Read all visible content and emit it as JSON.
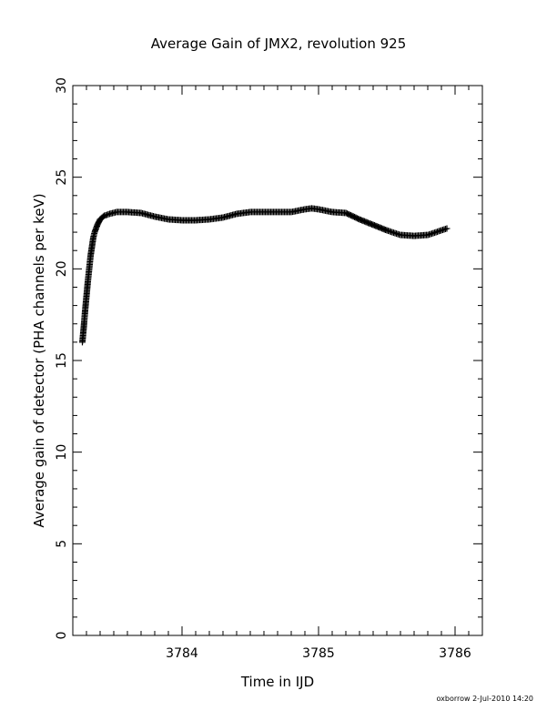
{
  "chart_data": {
    "type": "scatter",
    "title": "Average Gain of JMX2, revolution 925",
    "xlabel": "Time in IJD",
    "ylabel": "Average gain of detector (PHA channels per keV)",
    "xlim": [
      3783.2,
      3786.2
    ],
    "ylim": [
      0,
      30
    ],
    "x_ticks": [
      3784,
      3785,
      3786
    ],
    "y_ticks": [
      0,
      5,
      10,
      15,
      20,
      25,
      30
    ],
    "marker": "+",
    "grid": false,
    "series": [
      {
        "points": [
          [
            3783.27,
            16.0
          ],
          [
            3783.28,
            16.8
          ],
          [
            3783.29,
            17.7
          ],
          [
            3783.3,
            18.5
          ],
          [
            3783.31,
            19.3
          ],
          [
            3783.32,
            20.0
          ],
          [
            3783.33,
            20.7
          ],
          [
            3783.34,
            21.2
          ],
          [
            3783.35,
            21.7
          ],
          [
            3783.36,
            22.0
          ],
          [
            3783.38,
            22.4
          ],
          [
            3783.4,
            22.7
          ],
          [
            3783.43,
            22.9
          ],
          [
            3783.47,
            23.0
          ],
          [
            3783.52,
            23.1
          ],
          [
            3783.6,
            23.1
          ],
          [
            3783.7,
            23.05
          ],
          [
            3783.8,
            22.85
          ],
          [
            3783.9,
            22.7
          ],
          [
            3784.0,
            22.65
          ],
          [
            3784.1,
            22.65
          ],
          [
            3784.2,
            22.7
          ],
          [
            3784.3,
            22.8
          ],
          [
            3784.4,
            23.0
          ],
          [
            3784.5,
            23.1
          ],
          [
            3784.6,
            23.1
          ],
          [
            3784.7,
            23.1
          ],
          [
            3784.8,
            23.1
          ],
          [
            3784.9,
            23.25
          ],
          [
            3784.95,
            23.3
          ],
          [
            3785.0,
            23.25
          ],
          [
            3785.1,
            23.1
          ],
          [
            3785.2,
            23.05
          ],
          [
            3785.3,
            22.7
          ],
          [
            3785.4,
            22.4
          ],
          [
            3785.5,
            22.1
          ],
          [
            3785.6,
            21.85
          ],
          [
            3785.7,
            21.8
          ],
          [
            3785.8,
            21.85
          ],
          [
            3785.9,
            22.1
          ],
          [
            3785.94,
            22.2
          ]
        ]
      }
    ]
  },
  "footer": {
    "credit": "oxborrow   2-Jul-2010 14:20"
  }
}
